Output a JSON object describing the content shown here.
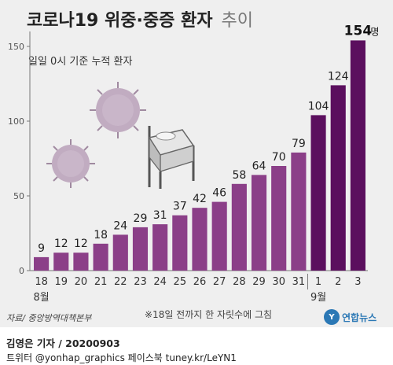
{
  "chart_data": {
    "type": "bar",
    "title": "코로나19 위중·중증 환자",
    "title_suffix": "추이",
    "subtitle": "일일 0시 기준 누적 환자",
    "categories": [
      "18",
      "19",
      "20",
      "21",
      "22",
      "23",
      "24",
      "25",
      "26",
      "27",
      "28",
      "29",
      "30",
      "31",
      "1",
      "2",
      "3"
    ],
    "values": [
      9,
      12,
      12,
      18,
      24,
      29,
      31,
      37,
      42,
      46,
      58,
      64,
      70,
      79,
      104,
      124,
      154
    ],
    "value_labels": [
      "9",
      "12",
      "12",
      "18",
      "24",
      "29",
      "31",
      "37",
      "42",
      "46",
      "58",
      "64",
      "70",
      "79",
      "104",
      "124",
      "154"
    ],
    "last_unit": "명",
    "month_labels": [
      {
        "text": "8월",
        "under_category": "18"
      },
      {
        "text": "9월",
        "under_category": "1"
      }
    ],
    "ylim": [
      0,
      160
    ],
    "yticks": [
      0,
      50,
      100,
      150
    ],
    "yticks_labels": [
      "0",
      "50",
      "100",
      "150"
    ],
    "grid": false,
    "colors": {
      "august": "#8b3f88",
      "september": "#5b0f5e",
      "background": "#efefef"
    }
  },
  "source": "자료/ 중앙방역대책본부",
  "note": "※18일 전까지 한 자릿수에 그침",
  "credit": {
    "line1": "김영은 기자 / 20200903",
    "line2": "트위터 @yonhap_graphics  페이스북 tuney.kr/LeYN1"
  },
  "logo": {
    "mark": "Y",
    "text": "연합뉴스"
  },
  "illustration": {
    "icons": [
      "virus-icon",
      "virus-icon",
      "hospital-bed-icon"
    ]
  }
}
